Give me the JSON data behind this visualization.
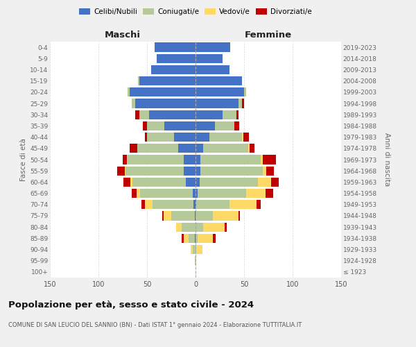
{
  "age_groups": [
    "100+",
    "95-99",
    "90-94",
    "85-89",
    "80-84",
    "75-79",
    "70-74",
    "65-69",
    "60-64",
    "55-59",
    "50-54",
    "45-49",
    "40-44",
    "35-39",
    "30-34",
    "25-29",
    "20-24",
    "15-19",
    "10-14",
    "5-9",
    "0-4"
  ],
  "birth_years": [
    "≤ 1923",
    "1924-1928",
    "1929-1933",
    "1934-1938",
    "1939-1943",
    "1944-1948",
    "1949-1953",
    "1954-1958",
    "1959-1963",
    "1964-1968",
    "1969-1973",
    "1974-1978",
    "1979-1983",
    "1984-1988",
    "1989-1993",
    "1994-1998",
    "1999-2003",
    "2004-2008",
    "2009-2013",
    "2014-2018",
    "2019-2023"
  ],
  "maschi": {
    "celibi": [
      0,
      0,
      0,
      1,
      0,
      1,
      2,
      3,
      10,
      12,
      12,
      18,
      22,
      32,
      48,
      62,
      68,
      58,
      46,
      40,
      42
    ],
    "coniugati": [
      0,
      1,
      3,
      6,
      14,
      24,
      42,
      54,
      55,
      60,
      58,
      42,
      28,
      18,
      10,
      4,
      2,
      1,
      0,
      0,
      0
    ],
    "vedovi": [
      0,
      0,
      2,
      5,
      6,
      8,
      8,
      4,
      2,
      1,
      1,
      0,
      0,
      0,
      0,
      0,
      0,
      0,
      0,
      0,
      0
    ],
    "divorziati": [
      0,
      0,
      0,
      2,
      0,
      1,
      4,
      5,
      7,
      8,
      4,
      8,
      2,
      4,
      4,
      0,
      0,
      0,
      0,
      0,
      0
    ]
  },
  "femmine": {
    "nubili": [
      0,
      0,
      0,
      0,
      0,
      0,
      1,
      2,
      4,
      5,
      5,
      8,
      14,
      20,
      28,
      44,
      50,
      48,
      35,
      28,
      36
    ],
    "coniugate": [
      0,
      0,
      1,
      2,
      8,
      18,
      34,
      50,
      60,
      64,
      62,
      46,
      34,
      20,
      14,
      4,
      2,
      0,
      0,
      0,
      0
    ],
    "vedove": [
      0,
      1,
      6,
      16,
      22,
      26,
      28,
      20,
      14,
      4,
      2,
      2,
      1,
      0,
      0,
      0,
      0,
      0,
      0,
      0,
      0
    ],
    "divorziate": [
      0,
      0,
      0,
      3,
      2,
      2,
      4,
      8,
      8,
      8,
      14,
      5,
      6,
      5,
      2,
      2,
      0,
      0,
      0,
      0,
      0
    ]
  },
  "colors": {
    "celibi": "#4472C4",
    "coniugati": "#B5C99A",
    "vedovi": "#FFD966",
    "divorziati": "#C00000"
  },
  "xlim": 150,
  "title": "Popolazione per età, sesso e stato civile - 2024",
  "subtitle": "COMUNE DI SAN LEUCIO DEL SANNIO (BN) - Dati ISTAT 1° gennaio 2024 - Elaborazione TUTTITALIA.IT",
  "ylabel_left": "Fasce di età",
  "ylabel_right": "Anni di nascita",
  "xlabel_maschi": "Maschi",
  "xlabel_femmine": "Femmine",
  "legend_labels": [
    "Celibi/Nubili",
    "Coniugati/e",
    "Vedovi/e",
    "Divorziati/e"
  ],
  "bg_color": "#f0f0f0",
  "bar_bg_color": "#ffffff"
}
